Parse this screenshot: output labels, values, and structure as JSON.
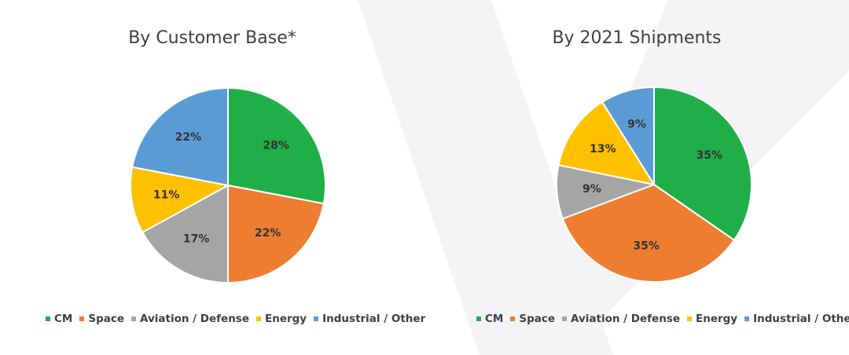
{
  "chart_data": [
    {
      "type": "pie",
      "title": "By Customer Base*",
      "categories": [
        "CM",
        "Space",
        "Aviation / Defense",
        "Energy",
        "Industrial / Other"
      ],
      "values": [
        28,
        22,
        17,
        11,
        22
      ],
      "labels": [
        "28%",
        "22%",
        "17%",
        "11%",
        "22%"
      ],
      "colors": [
        "#1fae48",
        "#ed7d31",
        "#a5a5a5",
        "#ffc000",
        "#5b9bd5"
      ],
      "legend_position": "bottom"
    },
    {
      "type": "pie",
      "title": "By 2021 Shipments",
      "categories": [
        "CM",
        "Space",
        "Aviation / Defense",
        "Energy",
        "Industrial / Other"
      ],
      "values": [
        35,
        35,
        9,
        13,
        9
      ],
      "labels": [
        "35%",
        "35%",
        "9%",
        "13%",
        "9%"
      ],
      "colors": [
        "#1fae48",
        "#ed7d31",
        "#a5a5a5",
        "#ffc000",
        "#5b9bd5"
      ],
      "legend_position": "bottom"
    }
  ]
}
